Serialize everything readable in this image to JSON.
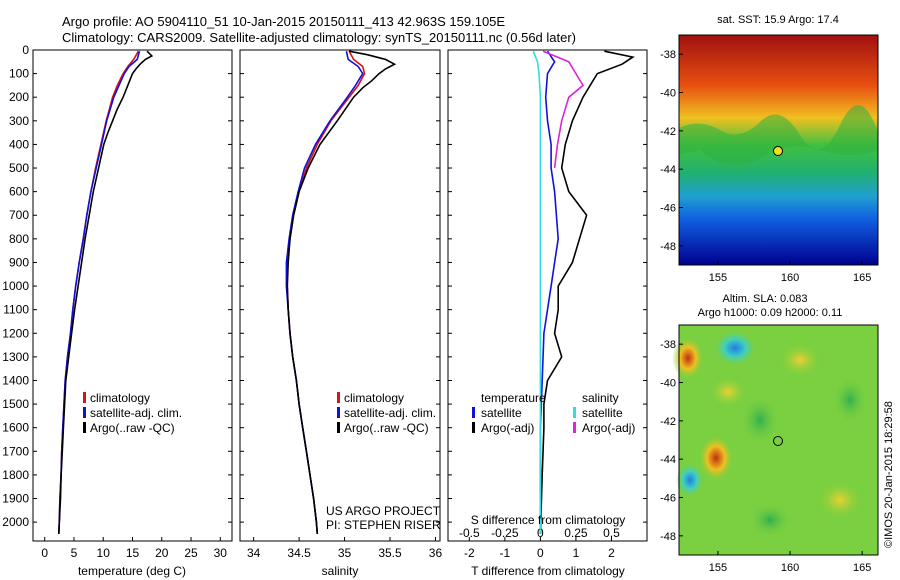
{
  "header": {
    "line1": "Argo profile: AO 5904110_51 10-Jan-2015 20150111_413 42.963S 159.105E",
    "line2": "Climatology: CARS2009. Satellite-adjusted climatology: synTS_20150111.nc (0.56d later)"
  },
  "depth_ticks": [
    "0",
    "100",
    "200",
    "300",
    "400",
    "500",
    "600",
    "700",
    "800",
    "900",
    "1000",
    "1100",
    "1200",
    "1300",
    "1400",
    "1500",
    "1600",
    "1700",
    "1800",
    "1900",
    "2000"
  ],
  "colors": {
    "climatology": "#dd1111",
    "satellite": "#1111dd",
    "argo": "#000000",
    "sal_satellite": "#33dddd",
    "sal_argo": "#dd22dd"
  },
  "chart_data": [
    {
      "type": "line",
      "xlabel": "temperature (deg C)",
      "xlim": [
        -2,
        32
      ],
      "xticks": [
        "0",
        "5",
        "10",
        "15",
        "20",
        "25",
        "30"
      ],
      "ylim": [
        2080,
        0
      ],
      "legend": [
        "climatology",
        "satellite-adj. clim.",
        "Argo(..raw -QC)"
      ],
      "series": [
        {
          "name": "climatology",
          "color": "#dd1111",
          "depth": [
            5,
            40,
            70,
            100,
            150,
            200,
            300,
            400,
            500,
            600,
            700,
            800,
            900,
            1000,
            1100,
            1200,
            1300,
            1400,
            1500,
            1600,
            1700,
            1800,
            1900,
            2000,
            2050
          ],
          "values": [
            16.0,
            15.2,
            14.2,
            13.4,
            12.4,
            11.6,
            10.5,
            9.6,
            8.7,
            7.9,
            7.2,
            6.6,
            5.9,
            5.3,
            4.8,
            4.4,
            3.9,
            3.5,
            3.3,
            3.1,
            2.9,
            2.8,
            2.6,
            2.5,
            2.4
          ]
        },
        {
          "name": "satellite-adj. clim.",
          "color": "#1111dd",
          "depth": [
            5,
            40,
            70,
            100,
            150,
            200,
            300,
            400,
            500,
            600,
            700,
            800,
            900,
            1000,
            1100,
            1200,
            1300,
            1400,
            1500,
            1600,
            1700,
            1800,
            1900,
            2000,
            2050
          ],
          "values": [
            16.2,
            15.8,
            14.4,
            13.6,
            12.7,
            11.8,
            10.6,
            9.7,
            8.8,
            7.9,
            7.2,
            6.6,
            5.9,
            5.3,
            4.8,
            4.4,
            3.9,
            3.5,
            3.3,
            3.1,
            2.9,
            2.8,
            2.6,
            2.5,
            2.4
          ]
        },
        {
          "name": "Argo(..raw -QC)",
          "color": "#000000",
          "depth": [
            5,
            25,
            40,
            60,
            80,
            100,
            150,
            200,
            250,
            300,
            350,
            400,
            500,
            600,
            700,
            800,
            900,
            1000,
            1100,
            1200,
            1300,
            1400,
            1500,
            1600,
            1700,
            1800,
            1900,
            2000,
            2050
          ],
          "values": [
            17.5,
            18.3,
            17.2,
            16.3,
            15.6,
            15.0,
            14.2,
            13.4,
            12.4,
            11.6,
            10.8,
            10.1,
            9.2,
            8.3,
            7.6,
            6.9,
            6.3,
            5.7,
            5.1,
            4.6,
            4.1,
            3.6,
            3.4,
            3.2,
            3.0,
            2.8,
            2.7,
            2.5,
            2.4
          ]
        }
      ]
    },
    {
      "type": "line",
      "xlabel": "salinity",
      "xlim": [
        33.85,
        36.05
      ],
      "xticks": [
        "34",
        "34.5",
        "35",
        "35.5",
        "36"
      ],
      "ylim": [
        2080,
        0
      ],
      "legend": [
        "climatology",
        "satellite-adj. clim.",
        "Argo(..raw -QC)"
      ],
      "annotation": [
        "US ARGO PROJECT",
        "PI: STEPHEN RISER"
      ],
      "series": [
        {
          "name": "climatology",
          "color": "#dd1111",
          "depth": [
            5,
            40,
            70,
            100,
            150,
            200,
            300,
            400,
            500,
            600,
            700,
            800,
            900,
            1000,
            1100,
            1200,
            1300,
            1400,
            1500,
            1600,
            1700,
            1800,
            1900,
            2000,
            2050
          ],
          "values": [
            35.05,
            35.1,
            35.2,
            35.22,
            35.15,
            35.05,
            34.85,
            34.7,
            34.58,
            34.5,
            34.44,
            34.4,
            34.37,
            34.37,
            34.38,
            34.4,
            34.43,
            34.47,
            34.5,
            34.54,
            34.58,
            34.62,
            34.66,
            34.69,
            34.7
          ]
        },
        {
          "name": "satellite-adj. clim.",
          "color": "#1111dd",
          "depth": [
            5,
            40,
            70,
            100,
            150,
            200,
            300,
            400,
            500,
            600,
            700,
            800,
            900,
            1000,
            1100,
            1200,
            1300,
            1400,
            1500,
            1600,
            1700,
            1800,
            1900,
            2000,
            2050
          ],
          "values": [
            35.02,
            35.04,
            35.15,
            35.2,
            35.12,
            35.03,
            34.84,
            34.68,
            34.56,
            34.49,
            34.43,
            34.39,
            34.36,
            34.36,
            34.38,
            34.4,
            34.43,
            34.47,
            34.5,
            34.54,
            34.58,
            34.62,
            34.66,
            34.69,
            34.7
          ]
        },
        {
          "name": "Argo(..raw -QC)",
          "color": "#000000",
          "depth": [
            5,
            20,
            40,
            60,
            80,
            100,
            130,
            160,
            200,
            300,
            400,
            500,
            600,
            700,
            800,
            900,
            1000,
            1100,
            1200,
            1300,
            1400,
            1500,
            1600,
            1700,
            1800,
            1900,
            2000,
            2050
          ],
          "values": [
            35.05,
            35.25,
            35.45,
            35.55,
            35.45,
            35.38,
            35.3,
            35.2,
            35.1,
            34.92,
            34.73,
            34.6,
            34.5,
            34.44,
            34.4,
            34.38,
            34.37,
            34.38,
            34.4,
            34.43,
            34.47,
            34.5,
            34.54,
            34.58,
            34.62,
            34.66,
            34.69,
            34.7
          ]
        }
      ]
    },
    {
      "type": "line",
      "xlabel": "T difference from climatology",
      "xlabel_top": "S difference from climatology",
      "xlim": [
        -2.6,
        3.0
      ],
      "xticks": [
        "-2",
        "-1",
        "0",
        "1",
        "2"
      ],
      "xticks_top": [
        "-0.5",
        "-0.25",
        "0",
        "0.25",
        "0.5"
      ],
      "ylim": [
        2080,
        0
      ],
      "legend_groups": [
        {
          "title": "temperature",
          "items": [
            "satellite",
            "Argo(-adj)"
          ]
        },
        {
          "title": "salinity",
          "items": [
            "satellite",
            "Argo(-adj)"
          ]
        }
      ],
      "series": [
        {
          "name": "satellite",
          "group": "temperature",
          "color": "#1111dd",
          "depth": [
            5,
            50,
            100,
            200,
            300,
            400,
            500,
            600,
            700,
            800,
            900,
            1000,
            1200,
            1400,
            1600,
            1800,
            2050
          ],
          "values": [
            0.2,
            0.4,
            0.2,
            0.15,
            0.2,
            0.3,
            0.3,
            0.4,
            0.45,
            0.5,
            0.4,
            0.3,
            0.1,
            0.05,
            0.0,
            0.0,
            0.0
          ]
        },
        {
          "name": "Argo(-adj)",
          "group": "temperature",
          "color": "#000000",
          "depth": [
            5,
            30,
            60,
            100,
            200,
            300,
            400,
            500,
            600,
            700,
            800,
            900,
            1000,
            1100,
            1200,
            1300,
            1400,
            1500,
            1600,
            1800,
            2050
          ],
          "values": [
            1.8,
            2.6,
            2.3,
            1.6,
            1.2,
            0.9,
            0.7,
            0.6,
            0.8,
            1.3,
            1.1,
            0.9,
            0.5,
            0.5,
            0.4,
            0.6,
            0.2,
            0.1,
            0.1,
            0.05,
            0.0
          ]
        },
        {
          "name": "satellite",
          "group": "salinity",
          "color": "#33dddd",
          "depth": [
            5,
            50,
            100,
            200,
            400,
            600,
            800,
            1000,
            1200,
            1400,
            1600,
            1800,
            2050
          ],
          "values": [
            -0.05,
            -0.02,
            -0.01,
            0.0,
            0.0,
            0.0,
            0.0,
            0.0,
            0.0,
            0.0,
            0.0,
            0.0,
            0.0
          ]
        },
        {
          "name": "Argo(-adj)",
          "group": "salinity",
          "color": "#dd22dd",
          "depth": [
            5,
            50,
            100,
            150,
            200,
            300,
            400,
            500
          ],
          "values": [
            0.02,
            0.2,
            0.25,
            0.3,
            0.2,
            0.15,
            0.12,
            0.1
          ]
        }
      ]
    }
  ],
  "maps": [
    {
      "title": "sat. SST: 15.9 Argo: 17.4",
      "yticks": [
        "-38",
        "-40",
        "-42",
        "-44",
        "-46",
        "-48"
      ],
      "xticks": [
        "155",
        "160",
        "165"
      ]
    },
    {
      "title1": "Altim. SLA: 0.083",
      "title2": "Argo h1000: 0.09 h2000: 0.11",
      "yticks": [
        "-38",
        "-40",
        "-42",
        "-44",
        "-46",
        "-48"
      ],
      "xticks": [
        "155",
        "160",
        "165"
      ]
    }
  ],
  "side_label": "©IMOS 20-Jan-2015 18:29:58"
}
